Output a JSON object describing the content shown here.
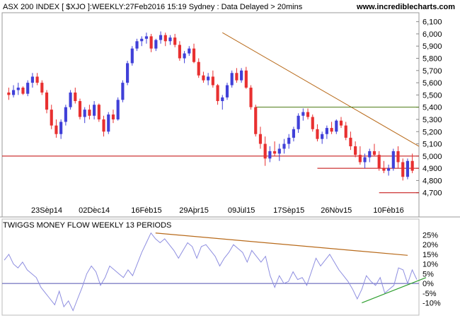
{
  "header": {
    "title": "ASX 200 INDEX [ $XJO ]:WEEKLY:27Feb2016 15:19 Sydney : Data Delayed > 20mins",
    "site": "www.incrediblecharts.com"
  },
  "colors": {
    "up": "#4040d8",
    "down": "#e83030",
    "trend": "#b86a1a",
    "support_red": "#c00000",
    "support_green": "#4a7a10",
    "money_flow": "#8e8ee0",
    "zero_line": "#5050b0",
    "tmf_support": "#30a030"
  },
  "chart_data": [
    {
      "type": "candlestick",
      "title": "ASX 200 INDEX [ $XJO ]:WEEKLY:27Feb2016 15:19 Sydney : Data Delayed > 20mins",
      "ylim": [
        4600,
        6150
      ],
      "y_ticks": [
        4700,
        4800,
        4900,
        5000,
        5100,
        5200,
        5300,
        5400,
        5500,
        5600,
        5700,
        5800,
        5900,
        6000,
        6100
      ],
      "y_tick_labels": [
        "4,700",
        "4,800",
        "4,900",
        "5,000",
        "5,100",
        "5,200",
        "5,300",
        "5,400",
        "5,500",
        "5,600",
        "5,700",
        "5,800",
        "5,900",
        "6,000",
        "6,100"
      ],
      "x_tick_labels": [
        {
          "label": "23Sep14",
          "index": 8
        },
        {
          "label": "02Dec14",
          "index": 18
        },
        {
          "label": "16Feb15",
          "index": 29
        },
        {
          "label": "29Apr15",
          "index": 39
        },
        {
          "label": "09Jul15",
          "index": 49
        },
        {
          "label": "17Sep15",
          "index": 59
        },
        {
          "label": "26Nov15",
          "index": 69
        },
        {
          "label": "10Feb16",
          "index": 80
        }
      ],
      "candles": [
        [
          5520,
          5560,
          5460,
          5500
        ],
        [
          5500,
          5580,
          5480,
          5540
        ],
        [
          5540,
          5600,
          5500,
          5560
        ],
        [
          5560,
          5570,
          5500,
          5510
        ],
        [
          5510,
          5620,
          5490,
          5600
        ],
        [
          5600,
          5680,
          5560,
          5650
        ],
        [
          5650,
          5680,
          5580,
          5600
        ],
        [
          5600,
          5620,
          5500,
          5520
        ],
        [
          5520,
          5540,
          5350,
          5380
        ],
        [
          5380,
          5420,
          5220,
          5250
        ],
        [
          5250,
          5300,
          5150,
          5180
        ],
        [
          5180,
          5300,
          5140,
          5280
        ],
        [
          5280,
          5420,
          5250,
          5400
        ],
        [
          5400,
          5540,
          5380,
          5520
        ],
        [
          5520,
          5560,
          5430,
          5450
        ],
        [
          5450,
          5470,
          5300,
          5320
        ],
        [
          5320,
          5400,
          5270,
          5380
        ],
        [
          5380,
          5420,
          5300,
          5330
        ],
        [
          5330,
          5450,
          5300,
          5420
        ],
        [
          5420,
          5430,
          5280,
          5300
        ],
        [
          5300,
          5330,
          5160,
          5200
        ],
        [
          5200,
          5360,
          5180,
          5340
        ],
        [
          5340,
          5380,
          5270,
          5300
        ],
        [
          5300,
          5480,
          5290,
          5460
        ],
        [
          5460,
          5620,
          5440,
          5600
        ],
        [
          5600,
          5780,
          5580,
          5760
        ],
        [
          5760,
          5900,
          5740,
          5880
        ],
        [
          5880,
          5960,
          5860,
          5940
        ],
        [
          5940,
          5980,
          5900,
          5960
        ],
        [
          5960,
          6010,
          5920,
          5980
        ],
        [
          5980,
          6000,
          5850,
          5880
        ],
        [
          5880,
          5960,
          5860,
          5950
        ],
        [
          5950,
          6020,
          5920,
          5990
        ],
        [
          5990,
          6010,
          5900,
          5940
        ],
        [
          5940,
          5990,
          5910,
          5970
        ],
        [
          5970,
          6000,
          5890,
          5910
        ],
        [
          5910,
          5940,
          5780,
          5800
        ],
        [
          5800,
          5860,
          5760,
          5840
        ],
        [
          5840,
          5900,
          5820,
          5880
        ],
        [
          5880,
          5920,
          5760,
          5770
        ],
        [
          5770,
          5800,
          5640,
          5660
        ],
        [
          5660,
          5690,
          5600,
          5620
        ],
        [
          5620,
          5680,
          5580,
          5650
        ],
        [
          5650,
          5700,
          5560,
          5580
        ],
        [
          5580,
          5590,
          5420,
          5450
        ],
        [
          5450,
          5500,
          5380,
          5480
        ],
        [
          5480,
          5600,
          5460,
          5580
        ],
        [
          5580,
          5700,
          5560,
          5680
        ],
        [
          5680,
          5720,
          5600,
          5620
        ],
        [
          5620,
          5720,
          5600,
          5700
        ],
        [
          5700,
          5730,
          5550,
          5560
        ],
        [
          5560,
          5580,
          5380,
          5400
        ],
        [
          5400,
          5420,
          5160,
          5180
        ],
        [
          5180,
          5240,
          5060,
          5100
        ],
        [
          5100,
          5160,
          4920,
          4980
        ],
        [
          4980,
          5080,
          4950,
          5040
        ],
        [
          5040,
          5120,
          5000,
          5020
        ],
        [
          5020,
          5100,
          4960,
          5060
        ],
        [
          5060,
          5140,
          5020,
          5100
        ],
        [
          5100,
          5180,
          5060,
          5150
        ],
        [
          5150,
          5240,
          5120,
          5220
        ],
        [
          5220,
          5350,
          5190,
          5330
        ],
        [
          5330,
          5390,
          5290,
          5360
        ],
        [
          5360,
          5390,
          5300,
          5320
        ],
        [
          5320,
          5340,
          5200,
          5220
        ],
        [
          5220,
          5260,
          5120,
          5140
        ],
        [
          5140,
          5200,
          5100,
          5180
        ],
        [
          5180,
          5250,
          5140,
          5230
        ],
        [
          5230,
          5280,
          5180,
          5200
        ],
        [
          5200,
          5300,
          5180,
          5290
        ],
        [
          5290,
          5320,
          5230,
          5250
        ],
        [
          5250,
          5280,
          5130,
          5150
        ],
        [
          5150,
          5200,
          5050,
          5080
        ],
        [
          5080,
          5120,
          4990,
          5010
        ],
        [
          5010,
          5080,
          4930,
          4950
        ],
        [
          4950,
          5020,
          4900,
          4990
        ],
        [
          4990,
          5060,
          4950,
          5040
        ],
        [
          5040,
          5100,
          5000,
          5010
        ],
        [
          5010,
          5040,
          4880,
          4900
        ],
        [
          4900,
          4960,
          4860,
          4880
        ],
        [
          4880,
          4930,
          4840,
          4900
        ],
        [
          4900,
          5060,
          4880,
          5040
        ],
        [
          5040,
          5080,
          4900,
          4950
        ],
        [
          4950,
          4980,
          4800,
          4830
        ],
        [
          4830,
          4980,
          4810,
          4960
        ],
        [
          4960,
          5020,
          4860,
          4880
        ]
      ],
      "lines": [
        {
          "kind": "trendline",
          "color": "trend",
          "from": [
            45,
            6010
          ],
          "to": [
            89,
            5080
          ]
        },
        {
          "kind": "support",
          "color": "support_red",
          "from": [
            -1,
            5000
          ],
          "to": [
            90,
            5000
          ]
        },
        {
          "kind": "support",
          "color": "support_green",
          "from": [
            52,
            5400
          ],
          "to": [
            90,
            5400
          ]
        },
        {
          "kind": "support",
          "color": "support_red",
          "from": [
            65,
            4900
          ],
          "to": [
            89,
            4900
          ]
        },
        {
          "kind": "support",
          "color": "support_red",
          "from": [
            78,
            4700
          ],
          "to": [
            90,
            4700
          ]
        }
      ]
    },
    {
      "type": "line",
      "title": "TWIGGS MONEY FLOW WEEKLY 13 PERIODS",
      "ylim": [
        -12,
        27
      ],
      "y_ticks": [
        -10,
        -5,
        0,
        5,
        10,
        15,
        20,
        25
      ],
      "y_tick_labels": [
        "-10%",
        "-5%",
        "0%",
        "5%",
        "10%",
        "15%",
        "20%",
        "25%"
      ],
      "series": [
        {
          "values": [
            12,
            15,
            10,
            8,
            11,
            7,
            5,
            3,
            -2,
            -5,
            -8,
            -11,
            -4,
            -12,
            -9,
            -14,
            -8,
            -2,
            5,
            9,
            6,
            -1,
            3,
            9,
            7,
            5,
            3,
            7,
            4,
            10,
            16,
            21,
            26,
            23,
            21,
            23,
            20,
            17,
            13,
            17,
            21,
            19,
            13,
            19,
            20,
            17,
            14,
            9,
            13,
            16,
            20,
            18,
            16,
            11,
            17,
            14,
            11,
            14,
            4,
            -2,
            4,
            0,
            1,
            6,
            2,
            3,
            -1,
            6,
            13,
            9,
            12,
            15,
            11,
            7,
            4,
            1,
            -3,
            -8,
            -3,
            4,
            1,
            -1,
            3,
            -5,
            -3,
            -1,
            8,
            7,
            0,
            7,
            2
          ]
        }
      ],
      "lines": [
        {
          "kind": "trendline",
          "color": "trend",
          "from": [
            33,
            26
          ],
          "to": [
            88,
            14.5
          ]
        },
        {
          "kind": "trendline",
          "color": "tmf_support",
          "from": [
            78,
            -10
          ],
          "to": [
            92,
            3
          ]
        }
      ]
    }
  ]
}
